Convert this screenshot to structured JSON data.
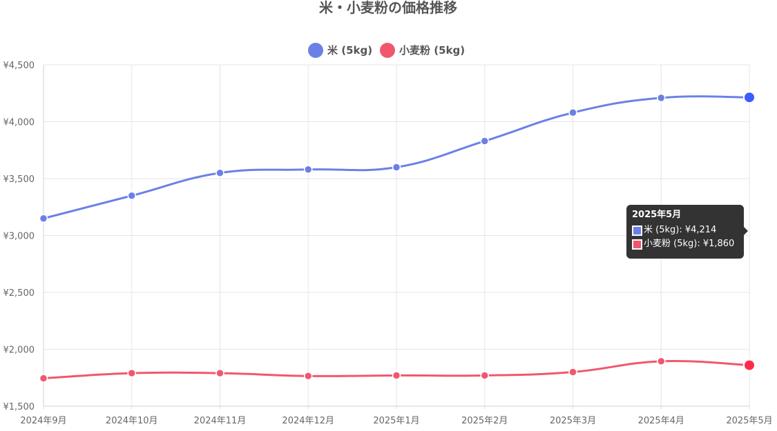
{
  "chart_data": {
    "type": "line",
    "title": "米・小麦粉の価格推移",
    "categories": [
      "2024年9月",
      "2024年10月",
      "2024年11月",
      "2024年12月",
      "2025年1月",
      "2025年2月",
      "2025年3月",
      "2025年4月",
      "2025年5月"
    ],
    "series": [
      {
        "name": "米 (5kg)",
        "color": "#6b80e6",
        "values": [
          3150,
          3350,
          3550,
          3580,
          3600,
          3830,
          4080,
          4210,
          4214
        ]
      },
      {
        "name": "小麦粉 (5kg)",
        "color": "#f0576e",
        "values": [
          1745,
          1790,
          1790,
          1765,
          1770,
          1770,
          1800,
          1895,
          1860
        ]
      }
    ],
    "ylim": [
      1500,
      4500
    ],
    "y_ticks": [
      1500,
      2000,
      2500,
      3000,
      3500,
      4000,
      4500
    ],
    "y_tick_labels": [
      "¥1,500",
      "¥2,000",
      "¥2,500",
      "¥3,000",
      "¥3,500",
      "¥4,000",
      "¥4,500"
    ],
    "legend_position": "top",
    "grid": true,
    "tooltip": {
      "title": "2025年5月",
      "rows": [
        {
          "label": "米 (5kg): ¥4,214",
          "color": "#6b80e6"
        },
        {
          "label": "小麦粉 (5kg): ¥1,860",
          "color": "#f0576e"
        }
      ]
    },
    "highlight_colors": [
      "#3d5cff",
      "#ff2b4a"
    ]
  }
}
